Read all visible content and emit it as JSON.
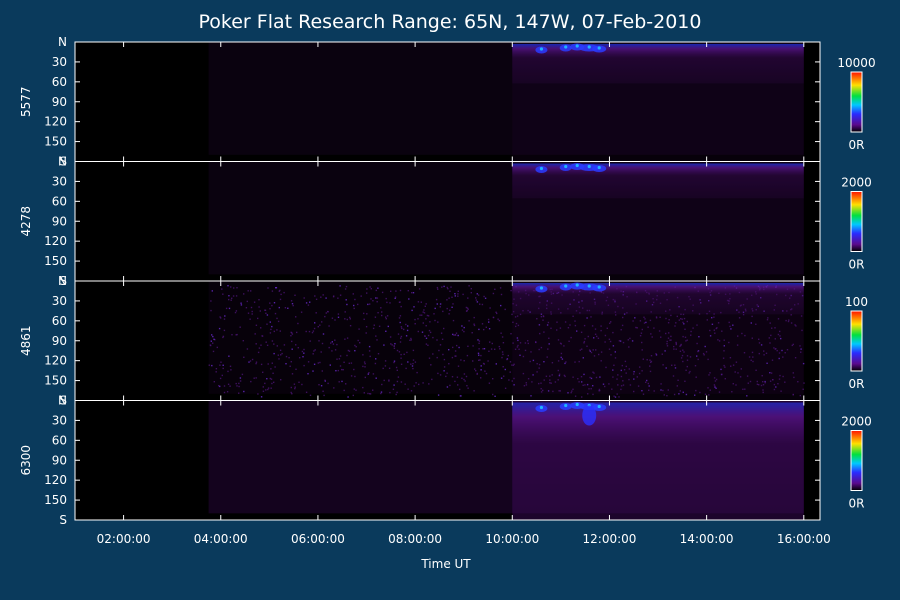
{
  "chart_data": {
    "type": "heatmap",
    "title": "Poker Flat Research Range: 65N, 147W, 07-Feb-2010",
    "xlabel": "Time UT",
    "xlim": [
      "01:00:00",
      "16:20:00"
    ],
    "xticks": [
      "02:00:00",
      "04:00:00",
      "06:00:00",
      "08:00:00",
      "10:00:00",
      "12:00:00",
      "14:00:00",
      "16:00:00"
    ],
    "yticks": [
      "N",
      "30",
      "60",
      "90",
      "120",
      "150",
      "S"
    ],
    "ylim": [
      0,
      180
    ],
    "colorscale": "rainbow",
    "panels": [
      {
        "ylabel": "5577",
        "cbar_max": "10000",
        "cbar_min": "0R",
        "data_start": "03:45:00",
        "activity_start": "10:00:00",
        "peak_time": "11:35:00"
      },
      {
        "ylabel": "4278",
        "cbar_max": "2000",
        "cbar_min": "0R",
        "data_start": "03:45:00",
        "activity_start": "10:00:00",
        "peak_time": "11:35:00"
      },
      {
        "ylabel": "4861",
        "cbar_max": "100",
        "cbar_min": "0R",
        "data_start": "03:45:00",
        "activity_start": "10:00:00",
        "peak_time": "11:35:00"
      },
      {
        "ylabel": "6300",
        "cbar_max": "2000",
        "cbar_min": "0R",
        "data_start": "03:45:00",
        "activity_start": "10:00:00",
        "peak_time": "11:35:00"
      }
    ]
  },
  "colors": {
    "page_background": "#0a3a5c",
    "plot_background": "#000000",
    "axis": "#ffffff",
    "emission_low": "#3a0a55",
    "emission_high": "#1a3cff"
  }
}
